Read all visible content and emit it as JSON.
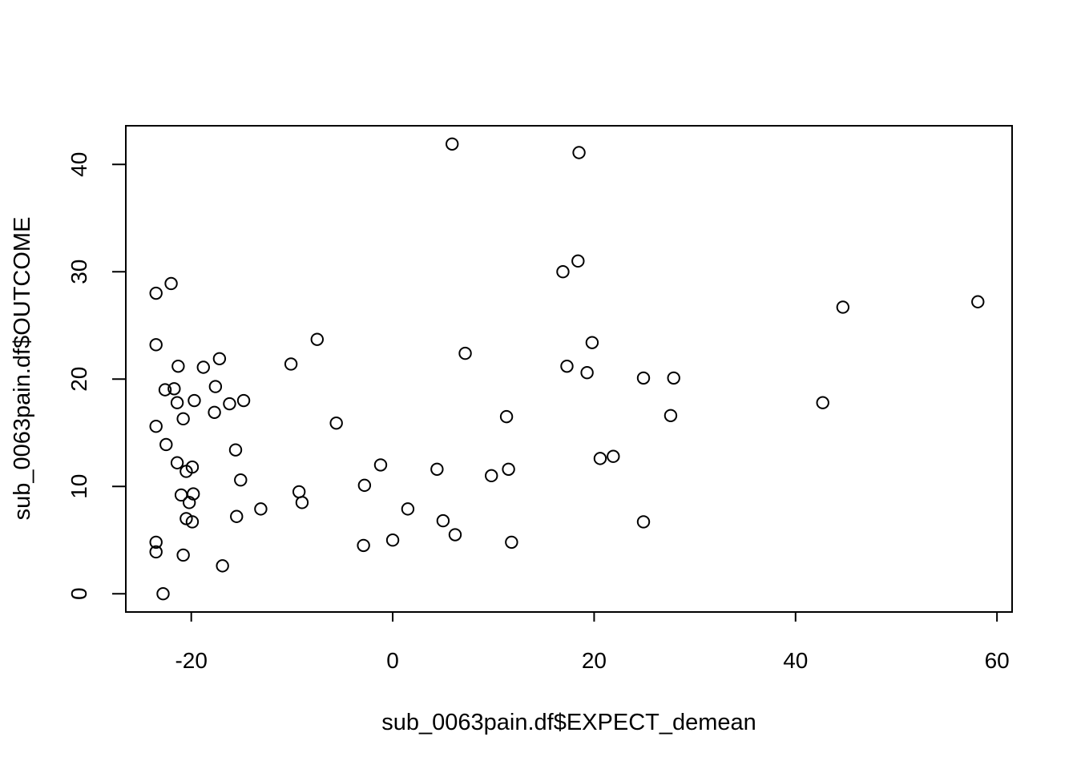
{
  "chart_data": {
    "type": "scatter",
    "title": "",
    "xlabel": "sub_0063pain.df$EXPECT_demean",
    "ylabel": "sub_0063pain.df$OUTCOME",
    "xlim": [
      -26.5,
      61.5
    ],
    "ylim": [
      -1.7,
      43.6
    ],
    "xticks": [
      -20,
      0,
      20,
      40,
      60
    ],
    "yticks": [
      0,
      10,
      20,
      30,
      40
    ],
    "xtick_labels": [
      "-20",
      "0",
      "20",
      "40",
      "60"
    ],
    "ytick_labels": [
      "0",
      "10",
      "20",
      "30",
      "40"
    ],
    "grid": false,
    "marker": "open-circle",
    "points": [
      [
        5.9,
        41.9
      ],
      [
        18.5,
        41.1
      ],
      [
        18.4,
        31.0
      ],
      [
        16.9,
        30.0
      ],
      [
        -22.0,
        28.9
      ],
      [
        -23.5,
        28.0
      ],
      [
        58.1,
        27.2
      ],
      [
        44.7,
        26.7
      ],
      [
        -7.5,
        23.7
      ],
      [
        19.8,
        23.4
      ],
      [
        -23.5,
        23.2
      ],
      [
        7.2,
        22.4
      ],
      [
        -17.2,
        21.9
      ],
      [
        -10.1,
        21.4
      ],
      [
        -21.3,
        21.2
      ],
      [
        17.3,
        21.2
      ],
      [
        -18.8,
        21.1
      ],
      [
        19.3,
        20.6
      ],
      [
        24.9,
        20.1
      ],
      [
        27.9,
        20.1
      ],
      [
        -17.6,
        19.3
      ],
      [
        -21.7,
        19.1
      ],
      [
        -22.6,
        19.0
      ],
      [
        -19.7,
        18.0
      ],
      [
        -14.8,
        18.0
      ],
      [
        42.7,
        17.8
      ],
      [
        -21.4,
        17.8
      ],
      [
        -16.2,
        17.7
      ],
      [
        -17.7,
        16.9
      ],
      [
        27.6,
        16.6
      ],
      [
        11.3,
        16.5
      ],
      [
        -20.8,
        16.3
      ],
      [
        -5.6,
        15.9
      ],
      [
        -23.5,
        15.6
      ],
      [
        -22.5,
        13.9
      ],
      [
        -15.6,
        13.4
      ],
      [
        21.9,
        12.8
      ],
      [
        20.6,
        12.6
      ],
      [
        -21.4,
        12.2
      ],
      [
        -1.2,
        12.0
      ],
      [
        -19.9,
        11.8
      ],
      [
        4.4,
        11.6
      ],
      [
        11.5,
        11.6
      ],
      [
        -20.5,
        11.4
      ],
      [
        9.8,
        11.0
      ],
      [
        -15.1,
        10.6
      ],
      [
        -2.8,
        10.1
      ],
      [
        -9.3,
        9.5
      ],
      [
        -19.8,
        9.3
      ],
      [
        -21.0,
        9.2
      ],
      [
        -9.0,
        8.5
      ],
      [
        -20.2,
        8.5
      ],
      [
        -13.1,
        7.9
      ],
      [
        1.5,
        7.9
      ],
      [
        -15.5,
        7.2
      ],
      [
        -20.5,
        7.0
      ],
      [
        5.0,
        6.8
      ],
      [
        -19.9,
        6.7
      ],
      [
        24.9,
        6.7
      ],
      [
        6.2,
        5.5
      ],
      [
        0.0,
        5.0
      ],
      [
        11.8,
        4.8
      ],
      [
        -23.5,
        4.8
      ],
      [
        -2.9,
        4.5
      ],
      [
        -23.5,
        3.9
      ],
      [
        -20.8,
        3.6
      ],
      [
        -16.9,
        2.6
      ],
      [
        -22.8,
        0.0
      ]
    ]
  }
}
